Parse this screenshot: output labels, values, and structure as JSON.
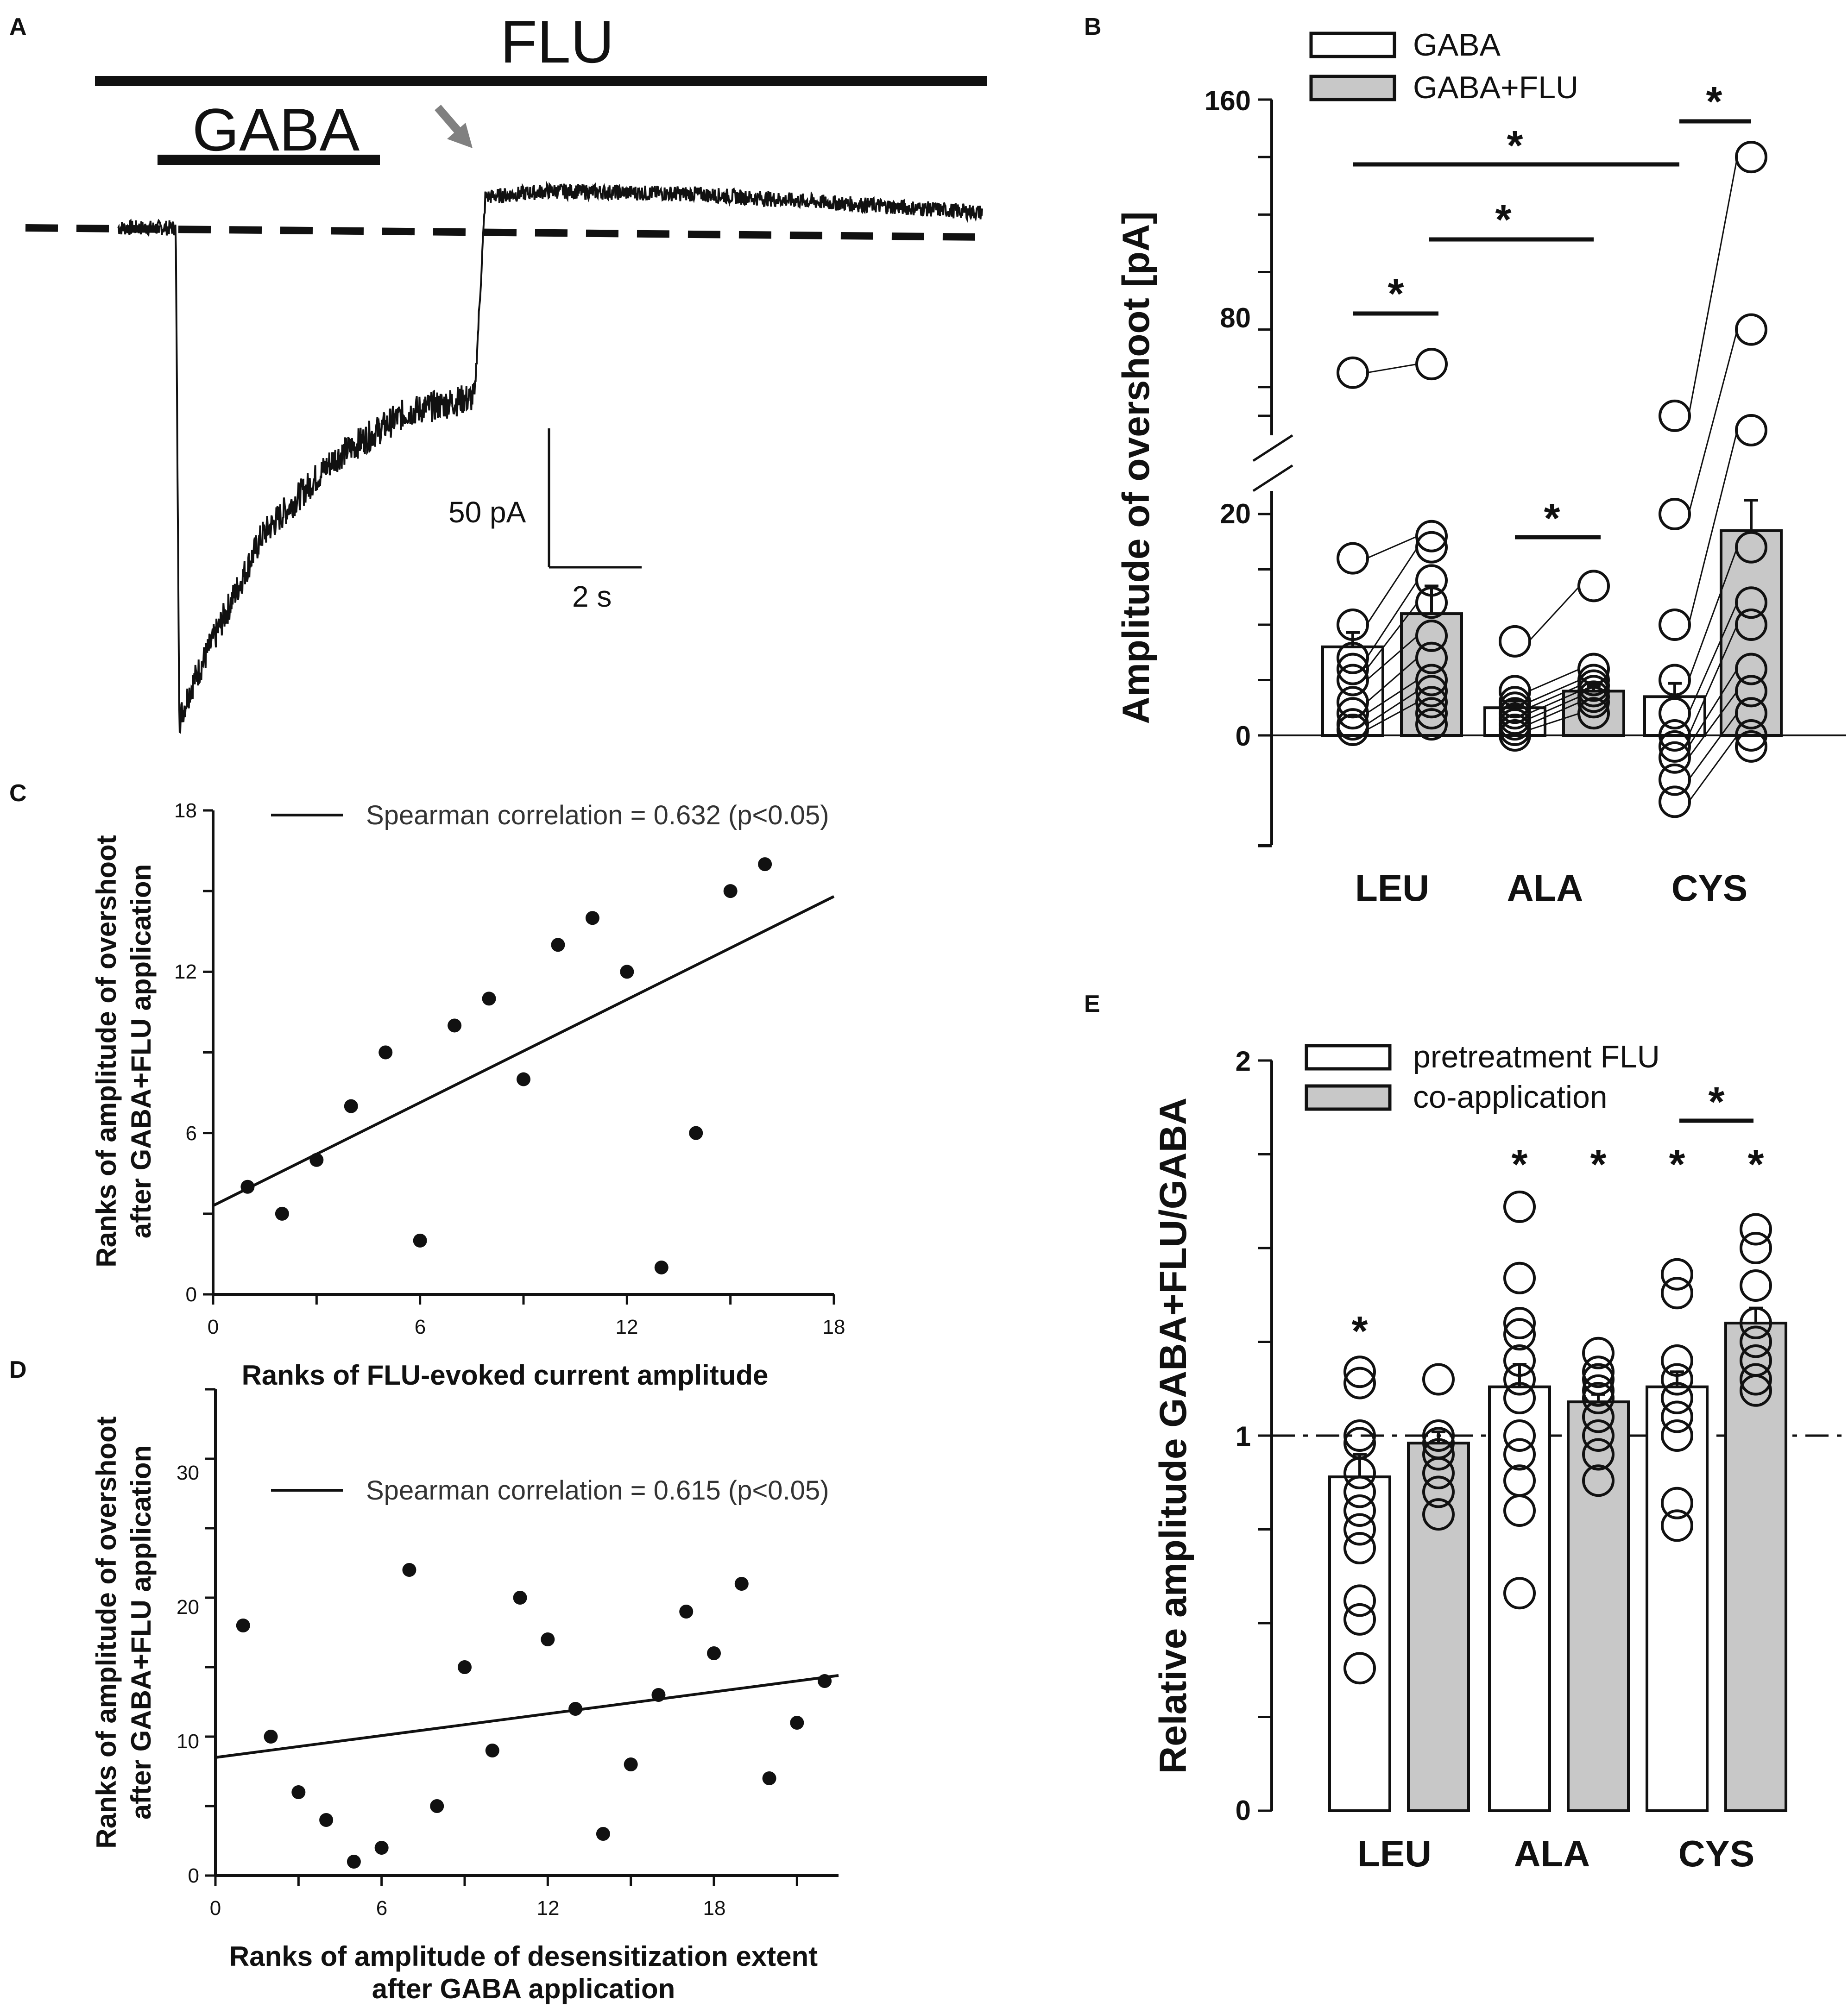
{
  "panels": {
    "A": {
      "letter": "A",
      "flu_label": "FLU",
      "gaba_label": "GABA",
      "scale_current": "50 pA",
      "scale_time": "2 s"
    },
    "B": {
      "letter": "B",
      "legend": [
        "GABA",
        "GABA+FLU"
      ],
      "ylabel": "Amplitude of overshoot [pA]",
      "yticks": [
        "160",
        "80",
        "20",
        "0"
      ],
      "categories": [
        "LEU",
        "ALA",
        "CYS"
      ],
      "star": "*"
    },
    "C": {
      "letter": "C",
      "legend": "Spearman correlation = 0.632 (p<0.05)",
      "xlabel": "Ranks of FLU-evoked current amplitude",
      "ylabel_line1": "Ranks of amplitude of overshoot",
      "ylabel_line2": "after GABA+FLU application",
      "xticks": [
        "0",
        "6",
        "12",
        "18"
      ],
      "yticks": [
        "0",
        "6",
        "12",
        "18"
      ]
    },
    "D": {
      "letter": "D",
      "legend": "Spearman correlation = 0.615 (p<0.05)",
      "xlabel_line1": "Ranks of amplitude of desensitization extent",
      "xlabel_line2": "after GABA application",
      "ylabel_line1": "Ranks of amplitude of overshoot",
      "ylabel_line2": "after GABA+FLU application",
      "xticks": [
        "0",
        "6",
        "12",
        "18"
      ],
      "yticks": [
        "0",
        "10",
        "20",
        "30"
      ]
    },
    "E": {
      "letter": "E",
      "legend": [
        "pretreatment FLU",
        "co-application"
      ],
      "ylabel": "Relative amplitude GABA+FLU/GABA",
      "yticks": [
        "0",
        "1",
        "2"
      ],
      "categories": [
        "LEU",
        "ALA",
        "CYS"
      ],
      "star": "*"
    }
  },
  "chart_data": [
    {
      "panel": "A",
      "type": "line",
      "title": "",
      "series": [
        {
          "name": "current trace",
          "x_s": [
            0,
            0.8,
            0.85,
            1.0,
            2.0,
            3.0,
            4.0,
            4.95,
            5.1,
            6.0,
            8.0,
            10.0,
            12.0
          ],
          "y_pA": [
            0,
            0,
            -160,
            -150,
            -100,
            -75,
            -60,
            -55,
            10,
            12,
            11,
            8,
            5
          ]
        }
      ],
      "annotations": [
        "FLU application bar",
        "GABA application bar",
        "overshoot arrow",
        "baseline dashed"
      ]
    },
    {
      "panel": "B",
      "type": "bar",
      "ylabel": "Amplitude of overshoot [pA]",
      "categories": [
        "LEU",
        "ALA",
        "CYS"
      ],
      "series": [
        {
          "name": "GABA",
          "values": [
            8.0,
            2.5,
            3.5
          ],
          "sem": [
            1.3,
            0.6,
            1.2
          ]
        },
        {
          "name": "GABA+FLU",
          "values": [
            11.0,
            4.0,
            18.5
          ],
          "sem": [
            2.5,
            0.5,
            5.5
          ]
        }
      ],
      "axis_break": [
        20,
        40
      ],
      "ylim": [
        -10,
        160
      ],
      "points": {
        "LEU": {
          "GABA": [
            65,
            16,
            10,
            7,
            6,
            5,
            3,
            2,
            1,
            0.5
          ],
          "GABA+FLU": [
            68,
            18,
            17,
            14,
            12,
            9,
            7,
            5,
            4,
            3,
            2,
            1
          ]
        },
        "ALA": {
          "GABA": [
            8.5,
            4,
            3,
            2.5,
            2,
            1.5,
            1,
            0.5,
            0
          ],
          "GABA+FLU": [
            13.5,
            6,
            5,
            4.5,
            4,
            3.5,
            3,
            2
          ]
        },
        "CYS": {
          "GABA": [
            50,
            20,
            10,
            5,
            2,
            0,
            -1,
            -2,
            -4,
            -6
          ],
          "GABA+FLU": [
            140,
            80,
            45,
            17,
            12,
            10,
            6,
            4,
            2,
            0,
            -1
          ]
        }
      },
      "significance": [
        {
          "between": [
            "LEU GABA",
            "LEU GABA+FLU"
          ],
          "label": "*"
        },
        {
          "between": [
            "ALA GABA",
            "ALA GABA+FLU"
          ],
          "label": "*"
        },
        {
          "between": [
            "CYS GABA",
            "CYS GABA+FLU"
          ],
          "label": "*"
        },
        {
          "between": [
            "LEU GABA+FLU",
            "ALA GABA+FLU"
          ],
          "label": "*"
        },
        {
          "between": [
            "LEU GABA",
            "CYS GABA"
          ],
          "label": "*"
        }
      ]
    },
    {
      "panel": "C",
      "type": "scatter",
      "xlabel": "Ranks of FLU-evoked current amplitude",
      "ylabel": "Ranks of amplitude of overshoot after GABA+FLU application",
      "xlim": [
        0,
        18
      ],
      "ylim": [
        0,
        18
      ],
      "x": [
        1,
        2,
        3,
        4,
        5,
        6,
        7,
        8,
        9,
        10,
        11,
        12,
        13,
        14,
        15,
        16
      ],
      "y": [
        4,
        3,
        5,
        7,
        9,
        2,
        10,
        11,
        8,
        13,
        14,
        12,
        1,
        6,
        15,
        16
      ],
      "fit_line": {
        "x": [
          0,
          18
        ],
        "y": [
          3.3,
          14.8
        ]
      }
    },
    {
      "panel": "D",
      "type": "scatter",
      "xlabel": "Ranks of amplitude of desensitization extent after GABA application",
      "ylabel": "Ranks of amplitude of overshoot after GABA+FLU application",
      "xlim": [
        0,
        22.5
      ],
      "ylim": [
        0,
        35
      ],
      "x": [
        1,
        2,
        3,
        4,
        5,
        6,
        7,
        8,
        9,
        10,
        11,
        12,
        13,
        14,
        15,
        16,
        17,
        18,
        19,
        20,
        21,
        22
      ],
      "y": [
        18,
        10,
        6,
        4,
        1,
        2,
        22,
        5,
        15,
        9,
        20,
        17,
        12,
        3,
        8,
        13,
        19,
        16,
        21,
        7,
        11,
        14
      ],
      "fit_line": {
        "x": [
          0,
          22.5
        ],
        "y": [
          8.5,
          14.4
        ]
      }
    },
    {
      "panel": "E",
      "type": "bar",
      "ylabel": "Relative amplitude GABA+FLU/GABA",
      "categories": [
        "LEU",
        "ALA",
        "CYS"
      ],
      "series": [
        {
          "name": "pretreatment FLU",
          "values": [
            0.89,
            1.13,
            1.13
          ],
          "sem": [
            0.06,
            0.06,
            0.04
          ]
        },
        {
          "name": "co-application",
          "values": [
            0.98,
            1.09,
            1.3
          ],
          "sem": [
            0.03,
            0.02,
            0.04
          ]
        }
      ],
      "ylim": [
        0,
        2
      ],
      "reference_line": 1,
      "points": {
        "LEU": {
          "pretreatment FLU": [
            1.17,
            1.14,
            1.0,
            0.98,
            0.9,
            0.85,
            0.8,
            0.75,
            0.7,
            0.56,
            0.51,
            0.38
          ],
          "co-application": [
            1.15,
            1.0,
            0.98,
            0.95,
            0.9,
            0.85,
            0.79
          ]
        },
        "ALA": {
          "pretreatment FLU": [
            1.61,
            1.42,
            1.3,
            1.27,
            1.2,
            1.15,
            1.1,
            1.0,
            0.95,
            0.88,
            0.8,
            0.58
          ],
          "co-application": [
            1.22,
            1.17,
            1.15,
            1.12,
            1.1,
            1.05,
            1.0,
            0.95,
            0.88
          ]
        },
        "CYS": {
          "pretreatment FLU": [
            1.43,
            1.38,
            1.2,
            1.15,
            1.1,
            1.05,
            1.0,
            0.82,
            0.76
          ],
          "co-application": [
            1.55,
            1.5,
            1.4,
            1.3,
            1.25,
            1.2,
            1.15,
            1.12
          ]
        }
      },
      "significance": [
        {
          "over": "LEU pretreatment FLU",
          "label": "*"
        },
        {
          "over": "ALA pretreatment FLU",
          "label": "*"
        },
        {
          "over": "ALA co-application",
          "label": "*"
        },
        {
          "over": "CYS pretreatment FLU",
          "label": "*"
        },
        {
          "over": "CYS co-application",
          "label": "*"
        },
        {
          "between": [
            "CYS pretreatment FLU",
            "CYS co-application"
          ],
          "label": "*"
        }
      ]
    }
  ]
}
